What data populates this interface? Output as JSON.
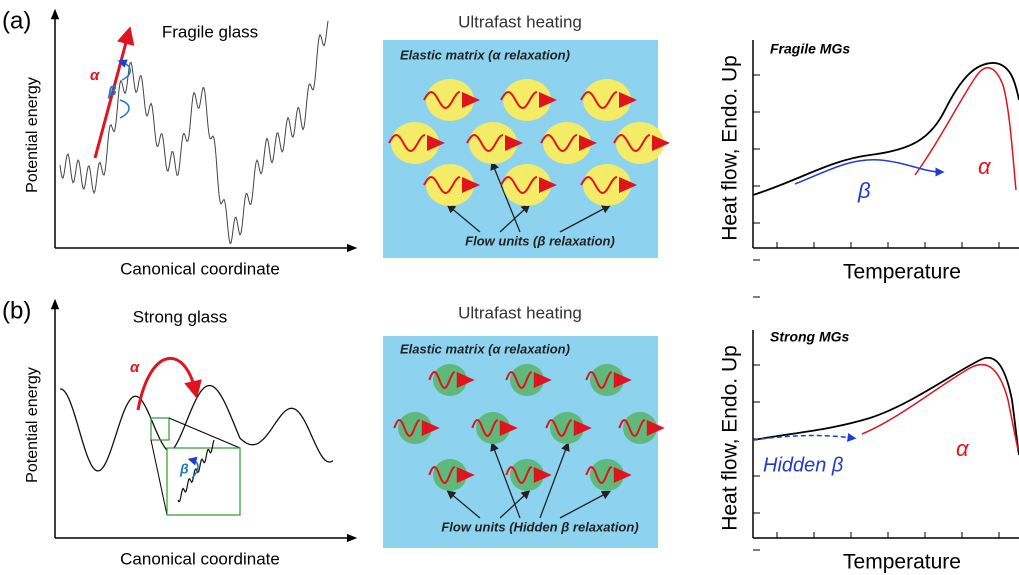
{
  "panels": [
    {
      "label": "(a)",
      "energy_landscape": {
        "title": "Fragile glass",
        "y_label": "Potential energy",
        "x_label": "Canonical coordinate",
        "alpha": "α",
        "beta": "β"
      },
      "schematic": {
        "title": "Ultrafast heating",
        "matrix": "Elastic matrix (α relaxation)",
        "units": "Flow units (β relaxation)"
      },
      "dsc": {
        "title": "Fragile MGs",
        "y_label": "Heat flow, Endo. Up",
        "x_label": "Temperature",
        "beta": "β",
        "alpha": "α"
      }
    },
    {
      "label": "(b)",
      "energy_landscape": {
        "title": "Strong glass",
        "y_label": "Potential energy",
        "x_label": "Canonical coordinate",
        "alpha": "α",
        "beta": "β"
      },
      "schematic": {
        "title": "Ultrafast heating",
        "matrix": "Elastic matrix (α relaxation)",
        "units": "Flow units (Hidden β relaxation)"
      },
      "dsc": {
        "title": "Strong MGs",
        "y_label": "Heat flow, Endo. Up",
        "x_label": "Temperature",
        "beta": "Hidden β",
        "alpha": "α"
      }
    }
  ]
}
